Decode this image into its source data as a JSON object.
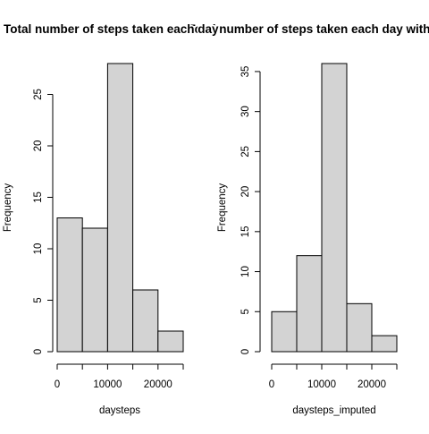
{
  "chart_data": [
    {
      "type": "bar",
      "subtype": "histogram",
      "title": "Total number of steps taken each day",
      "xlabel": "daysteps",
      "ylabel": "Frequency",
      "bins": [
        [
          0,
          5000
        ],
        [
          5000,
          10000
        ],
        [
          10000,
          15000
        ],
        [
          15000,
          20000
        ],
        [
          20000,
          25000
        ]
      ],
      "values": [
        13,
        12,
        28,
        6,
        2
      ],
      "xlim": [
        0,
        25000
      ],
      "ylim": [
        0,
        28
      ],
      "xticks": [
        0,
        5000,
        10000,
        15000,
        20000,
        25000
      ],
      "xtick_labels": [
        "0",
        "",
        "10000",
        "",
        "20000",
        ""
      ],
      "yticks": [
        0,
        5,
        10,
        15,
        20,
        25
      ],
      "ytick_labels": [
        "0",
        "5",
        "10",
        "15",
        "20",
        "25"
      ],
      "grid": false,
      "bar_color": "#d3d3d3"
    },
    {
      "type": "bar",
      "subtype": "histogram",
      "title": "Total number of steps taken each day with imputed",
      "xlabel": "daysteps_imputed",
      "ylabel": "Frequency",
      "bins": [
        [
          0,
          5000
        ],
        [
          5000,
          10000
        ],
        [
          10000,
          15000
        ],
        [
          15000,
          20000
        ],
        [
          20000,
          25000
        ]
      ],
      "values": [
        5,
        12,
        36,
        6,
        2
      ],
      "xlim": [
        0,
        25000
      ],
      "ylim": [
        0,
        36
      ],
      "xticks": [
        0,
        5000,
        10000,
        15000,
        20000,
        25000
      ],
      "xtick_labels": [
        "0",
        "",
        "10000",
        "",
        "20000",
        ""
      ],
      "yticks": [
        0,
        5,
        10,
        15,
        20,
        25,
        30,
        35
      ],
      "ytick_labels": [
        "0",
        "5",
        "10",
        "15",
        "20",
        "25",
        "30",
        "35"
      ],
      "grid": false,
      "bar_color": "#d3d3d3"
    }
  ]
}
